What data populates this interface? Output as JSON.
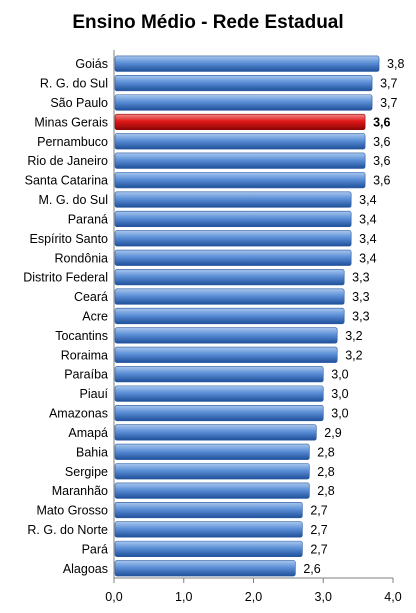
{
  "chart_data": {
    "type": "bar",
    "orientation": "horizontal",
    "title": "Ensino Médio - Rede Estadual",
    "categories": [
      "Goiás",
      "R. G. do Sul",
      "São Paulo",
      "Minas Gerais",
      "Pernambuco",
      "Rio de Janeiro",
      "Santa Catarina",
      "M. G. do Sul",
      "Paraná",
      "Espírito Santo",
      "Rondônia",
      "Distrito Federal",
      "Ceará",
      "Acre",
      "Tocantins",
      "Roraima",
      "Paraíba",
      "Piauí",
      "Amazonas",
      "Amapá",
      "Bahia",
      "Sergipe",
      "Maranhão",
      "Mato Grosso",
      "R. G. do Norte",
      "Pará",
      "Alagoas"
    ],
    "values": [
      3.8,
      3.7,
      3.7,
      3.6,
      3.6,
      3.6,
      3.6,
      3.4,
      3.4,
      3.4,
      3.4,
      3.3,
      3.3,
      3.3,
      3.2,
      3.2,
      3.0,
      3.0,
      3.0,
      2.9,
      2.8,
      2.8,
      2.8,
      2.7,
      2.7,
      2.7,
      2.6
    ],
    "value_labels": [
      "3,8",
      "3,7",
      "3,7",
      "3,6",
      "3,6",
      "3,6",
      "3,6",
      "3,4",
      "3,4",
      "3,4",
      "3,4",
      "3,3",
      "3,3",
      "3,3",
      "3,2",
      "3,2",
      "3,0",
      "3,0",
      "3,0",
      "2,9",
      "2,8",
      "2,8",
      "2,8",
      "2,7",
      "2,7",
      "2,7",
      "2,6"
    ],
    "highlight_category": "Minas Gerais",
    "xlim": [
      0,
      4
    ],
    "xticks": [
      "0,0",
      "1,0",
      "2,0",
      "3,0",
      "4,0"
    ],
    "grid": false,
    "legend": "none",
    "colors": {
      "bar": "#4a7ebb",
      "highlight": "#e11a1a"
    }
  }
}
